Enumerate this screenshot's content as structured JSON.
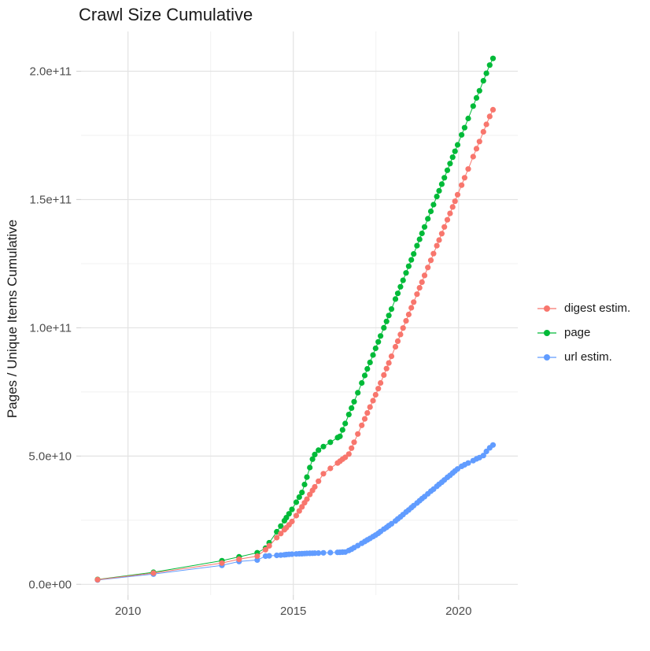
{
  "figure": {
    "background": "#ffffff"
  },
  "chart_data": {
    "type": "scatter",
    "title": "Crawl Size Cumulative",
    "xlabel": "",
    "ylabel": "Pages / Unique Items Cumulative",
    "legend_position": "right",
    "grid": true,
    "xlim": [
      2008.58,
      2021.79
    ],
    "ylim": [
      -4200000000.0,
      215500000000.0
    ],
    "x_ticks": [
      {
        "value": 2010,
        "label": "2010"
      },
      {
        "value": 2015,
        "label": "2015"
      },
      {
        "value": 2020,
        "label": "2020"
      }
    ],
    "x_minor_ticks": [
      2012.5,
      2017.5
    ],
    "y_ticks": [
      {
        "value": 0,
        "label": "0.0e+00"
      },
      {
        "value": 50000000000.0,
        "label": "5.0e+10"
      },
      {
        "value": 100000000000.0,
        "label": "1.0e+11"
      },
      {
        "value": 150000000000.0,
        "label": "1.5e+11"
      },
      {
        "value": 200000000000.0,
        "label": "2.0e+11"
      }
    ],
    "y_minor_ticks": [
      25000000000.0,
      75000000000.0,
      125000000000.0,
      175000000000.0
    ],
    "x": [
      2009.08,
      2010.77,
      2012.84,
      2013.36,
      2013.91,
      2014.16,
      2014.27,
      2014.5,
      2014.62,
      2014.73,
      2014.79,
      2014.87,
      2014.96,
      2015.09,
      2015.18,
      2015.26,
      2015.34,
      2015.41,
      2015.5,
      2015.58,
      2015.65,
      2015.76,
      2015.91,
      2016.12,
      2016.34,
      2016.41,
      2016.49,
      2016.57,
      2016.68,
      2016.76,
      2016.84,
      2016.95,
      2017.07,
      2017.16,
      2017.24,
      2017.32,
      2017.41,
      2017.49,
      2017.57,
      2017.64,
      2017.74,
      2017.82,
      2017.89,
      2017.97,
      2018.09,
      2018.16,
      2018.24,
      2018.32,
      2018.41,
      2018.49,
      2018.57,
      2018.64,
      2018.74,
      2018.82,
      2018.89,
      2018.97,
      2019.07,
      2019.16,
      2019.24,
      2019.34,
      2019.41,
      2019.49,
      2019.57,
      2019.66,
      2019.74,
      2019.82,
      2019.89,
      2019.97,
      2020.09,
      2020.18,
      2020.29,
      2020.44,
      2020.54,
      2020.63,
      2020.75,
      2020.84,
      2020.94,
      2021.04
    ],
    "series": [
      {
        "name": "digest estim.",
        "color": "#F8766D",
        "values": [
          1800000000.0,
          4400000000.0,
          8300000000.0,
          9800000000.0,
          11000000000.0,
          13500000000.0,
          15000000000.0,
          18200000000.0,
          19800000000.0,
          21300000000.0,
          22100000000.0,
          23200000000.0,
          24500000000.0,
          26800000000.0,
          28600000000.0,
          30200000000.0,
          31800000000.0,
          33200000000.0,
          35000000000.0,
          36600000000.0,
          38000000000.0,
          40200000000.0,
          43100000000.0,
          45200000000.0,
          47300000000.0,
          48000000000.0,
          48800000000.0,
          49500000000.0,
          50800000000.0,
          53100000000.0,
          55400000000.0,
          58600000000.0,
          62000000000.0,
          64500000000.0,
          66800000000.0,
          69100000000.0,
          71600000000.0,
          73900000000.0,
          76300000000.0,
          78500000000.0,
          81600000000.0,
          84100000000.0,
          86300000000.0,
          88900000000.0,
          92600000000.0,
          94800000000.0,
          97400000000.0,
          99900000000.0,
          102700000000.0,
          105200000000.0,
          107800000000.0,
          110000000000.0,
          113100000000.0,
          115600000000.0,
          117800000000.0,
          120400000000.0,
          123500000000.0,
          126300000000.0,
          128900000000.0,
          132000000000.0,
          134200000000.0,
          136700000000.0,
          139300000000.0,
          142100000000.0,
          144600000000.0,
          147100000000.0,
          149300000000.0,
          151900000000.0,
          155600000000.0,
          158500000000.0,
          161900000000.0,
          166700000000.0,
          169800000000.0,
          172600000000.0,
          176400000000.0,
          179300000000.0,
          182400000000.0,
          185000000000.0
        ]
      },
      {
        "name": "page",
        "color": "#00BA38",
        "values": [
          1900000000.0,
          4700000000.0,
          9200000000.0,
          10700000000.0,
          12300000000.0,
          14100000000.0,
          16200000000.0,
          20500000000.0,
          22700000000.0,
          24800000000.0,
          26000000000.0,
          27500000000.0,
          29200000000.0,
          32000000000.0,
          34000000000.0,
          35800000000.0,
          38900000000.0,
          41800000000.0,
          45500000000.0,
          48800000000.0,
          50600000000.0,
          52300000000.0,
          53700000000.0,
          55400000000.0,
          57200000000.0,
          57700000000.0,
          60200000000.0,
          62700000000.0,
          66200000000.0,
          68700000000.0,
          71200000000.0,
          74700000000.0,
          78500000000.0,
          81400000000.0,
          84000000000.0,
          86500000000.0,
          89400000000.0,
          92000000000.0,
          94500000000.0,
          96800000000.0,
          100000000000.0,
          102500000000.0,
          104800000000.0,
          107300000000.0,
          111200000000.0,
          113400000000.0,
          116000000000.0,
          118500000000.0,
          121400000000.0,
          124000000000.0,
          126500000000.0,
          128800000000.0,
          132000000000.0,
          134500000000.0,
          136800000000.0,
          139300000000.0,
          142500000000.0,
          145400000000.0,
          148000000000.0,
          151200000000.0,
          153400000000.0,
          156000000000.0,
          158500000000.0,
          161400000000.0,
          164000000000.0,
          166500000000.0,
          168800000000.0,
          171300000000.0,
          175200000000.0,
          178000000000.0,
          181600000000.0,
          186400000000.0,
          189600000000.0,
          192400000000.0,
          196300000000.0,
          199200000000.0,
          202400000000.0,
          205000000000.0
        ]
      },
      {
        "name": "url estim.",
        "color": "#619CFF",
        "values": [
          1700000000.0,
          4000000000.0,
          7400000000.0,
          8900000000.0,
          9500000000.0,
          11000000000.0,
          11100000000.0,
          11300000000.0,
          11400000000.0,
          11500000000.0,
          11600000000.0,
          11700000000.0,
          11750000000.0,
          11850000000.0,
          11900000000.0,
          11950000000.0,
          12000000000.0,
          12050000000.0,
          12100000000.0,
          12130000000.0,
          12160000000.0,
          12200000000.0,
          12270000000.0,
          12360000000.0,
          12470000000.0,
          12500000000.0,
          12540000000.0,
          12580000000.0,
          13200000000.0,
          13700000000.0,
          14300000000.0,
          15100000000.0,
          16000000000.0,
          16700000000.0,
          17300000000.0,
          17900000000.0,
          18600000000.0,
          19200000000.0,
          19900000000.0,
          20600000000.0,
          21500000000.0,
          22200000000.0,
          22900000000.0,
          23600000000.0,
          24700000000.0,
          25500000000.0,
          26300000000.0,
          27200000000.0,
          28200000000.0,
          29000000000.0,
          29900000000.0,
          30700000000.0,
          31700000000.0,
          32600000000.0,
          33400000000.0,
          34200000000.0,
          35300000000.0,
          36300000000.0,
          37100000000.0,
          38200000000.0,
          39000000000.0,
          39800000000.0,
          40700000000.0,
          41700000000.0,
          42500000000.0,
          43400000000.0,
          44200000000.0,
          45000000000.0,
          46000000000.0,
          46600000000.0,
          47300000000.0,
          48200000000.0,
          48900000000.0,
          49400000000.0,
          50200000000.0,
          51800000000.0,
          53200000000.0,
          54300000000.0
        ]
      }
    ],
    "style": {
      "major_grid": "#e3e3e3",
      "minor_grid": "#f1f1f1",
      "tick_color": "#d6d6d6",
      "axis_text_color": "#4d4d4d",
      "title_color": "#1a1a1a",
      "point_radius": 3.6,
      "line_width": 1
    }
  }
}
